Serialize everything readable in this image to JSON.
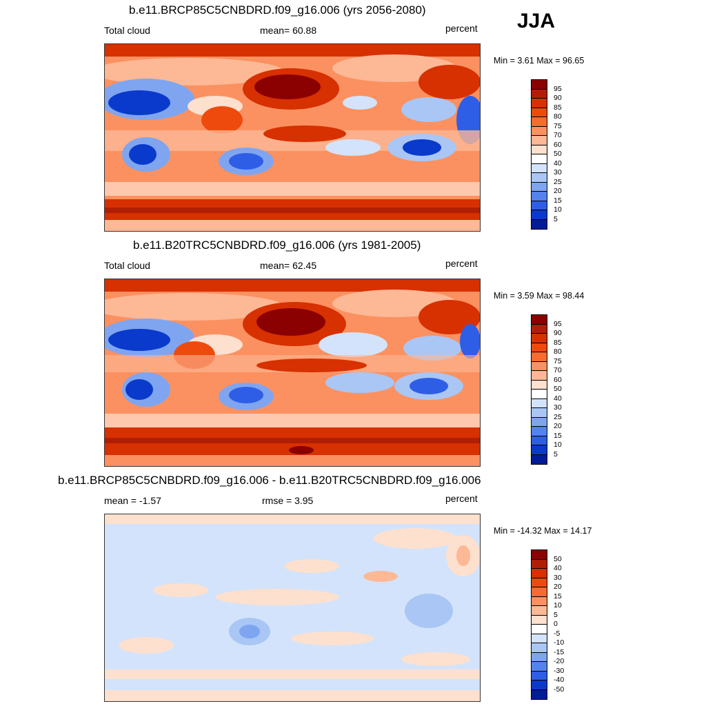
{
  "season": "JJA",
  "unit": "percent",
  "panels": [
    {
      "title": "b.e11.BRCP85C5CNBDRD.f09_g16.006 (yrs 2056-2080)",
      "left_label": "Total cloud",
      "center_label": "mean=  60.88",
      "right_label": "percent",
      "minmax": "Min =   3.61 Max =  96.65",
      "colorbar": {
        "labels": [
          "95",
          "90",
          "85",
          "80",
          "75",
          "70",
          "60",
          "50",
          "40",
          "30",
          "25",
          "20",
          "15",
          "10",
          "5"
        ],
        "colors": [
          "#8b0000",
          "#b01f05",
          "#d73001",
          "#ee4a0e",
          "#f76a30",
          "#fb9160",
          "#fdb896",
          "#fde0ce",
          "#ffffff",
          "#d3e3fb",
          "#a9c6f5",
          "#7fa5f0",
          "#5583ed",
          "#2f5ee6",
          "#0a3acc",
          "#001c99"
        ]
      }
    },
    {
      "title": "b.e11.B20TRC5CNBDRD.f09_g16.006 (yrs 1981-2005)",
      "left_label": "Total cloud",
      "center_label": "mean=  62.45",
      "right_label": "percent",
      "minmax": "Min =   3.59 Max =  98.44",
      "colorbar": {
        "labels": [
          "95",
          "90",
          "85",
          "80",
          "75",
          "70",
          "60",
          "50",
          "40",
          "30",
          "25",
          "20",
          "15",
          "10",
          "5"
        ],
        "colors": [
          "#8b0000",
          "#b01f05",
          "#d73001",
          "#ee4a0e",
          "#f76a30",
          "#fb9160",
          "#fdb896",
          "#fde0ce",
          "#ffffff",
          "#d3e3fb",
          "#a9c6f5",
          "#7fa5f0",
          "#5583ed",
          "#2f5ee6",
          "#0a3acc",
          "#001c99"
        ]
      }
    },
    {
      "title": "b.e11.BRCP85C5CNBDRD.f09_g16.006 - b.e11.B20TRC5CNBDRD.f09_g16.006",
      "left_label": "mean =  -1.57",
      "center_label": "rmse =   3.95",
      "right_label": "percent",
      "minmax": "Min = -14.32 Max =  14.17",
      "colorbar": {
        "labels": [
          "50",
          "40",
          "30",
          "20",
          "15",
          "10",
          "5",
          "0",
          "-5",
          "-10",
          "-15",
          "-20",
          "-30",
          "-40",
          "-50"
        ],
        "colors": [
          "#8b0000",
          "#b01f05",
          "#d73001",
          "#ee4a0e",
          "#f76a30",
          "#fb9160",
          "#fdb896",
          "#fde0ce",
          "#ffffff",
          "#d3e3fb",
          "#a9c6f5",
          "#7fa5f0",
          "#5583ed",
          "#2f5ee6",
          "#0a3acc",
          "#001c99"
        ]
      }
    }
  ]
}
